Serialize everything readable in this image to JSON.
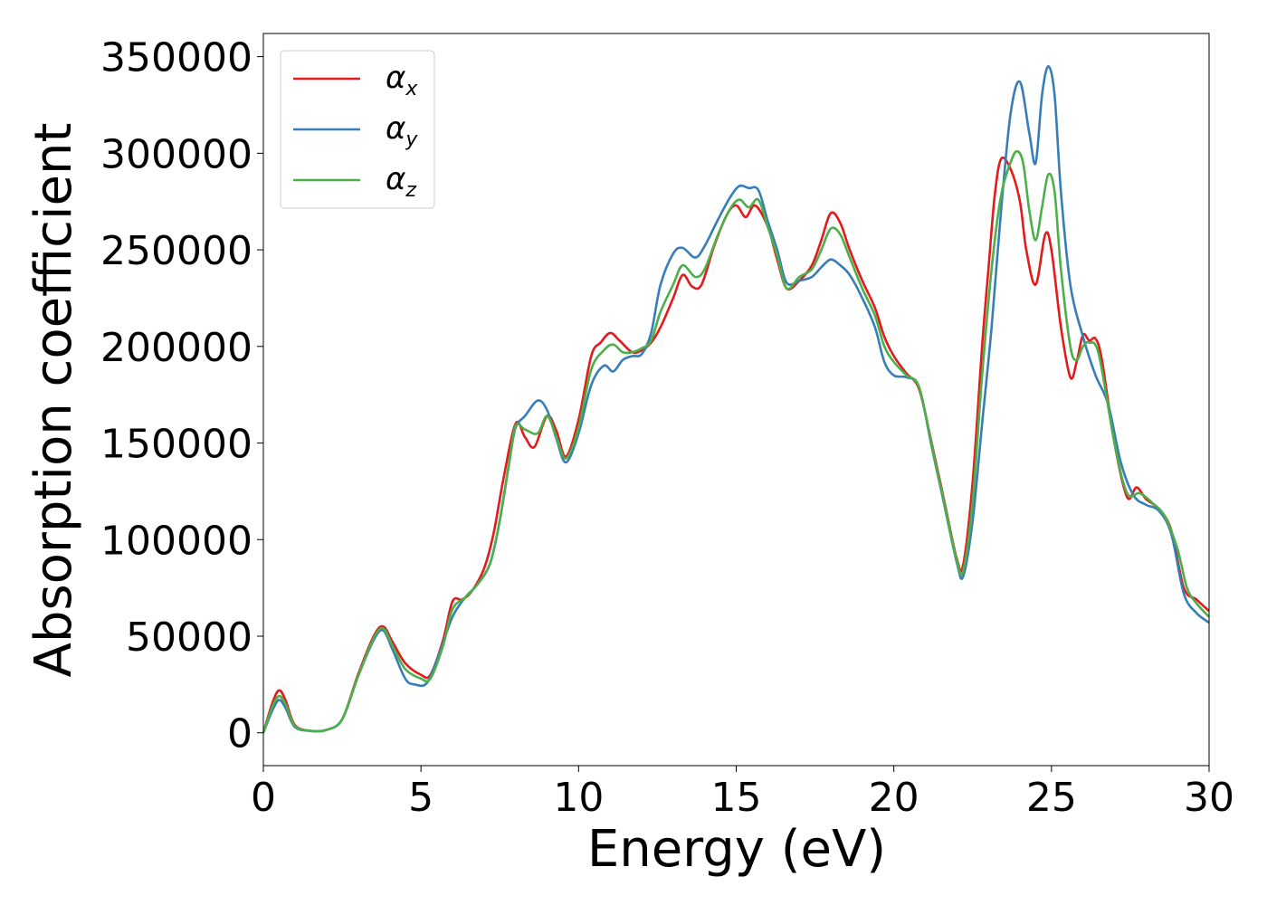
{
  "chart_data": {
    "type": "line",
    "title": "",
    "xlabel": "Energy (eV)",
    "ylabel": "Absorption coefficient",
    "xlim": [
      0,
      30
    ],
    "ylim": [
      -17000,
      362000
    ],
    "xticks": [
      "0",
      "5",
      "10",
      "15",
      "20",
      "25",
      "30"
    ],
    "yticks": [
      "0",
      "50000",
      "100000",
      "150000",
      "200000",
      "250000",
      "300000",
      "350000"
    ],
    "grid": false,
    "legend_position": "top-left",
    "series": [
      {
        "name": "α",
        "subscript": "x",
        "color": "#e41a1c",
        "points": [
          [
            0,
            0
          ],
          [
            0.3,
            16000
          ],
          [
            0.5,
            22000
          ],
          [
            0.7,
            17000
          ],
          [
            1.0,
            4000
          ],
          [
            1.5,
            1000
          ],
          [
            2.0,
            1500
          ],
          [
            2.5,
            7000
          ],
          [
            3.0,
            30000
          ],
          [
            3.5,
            50000
          ],
          [
            3.8,
            55000
          ],
          [
            4.1,
            47000
          ],
          [
            4.5,
            36000
          ],
          [
            5.0,
            30000
          ],
          [
            5.3,
            30000
          ],
          [
            5.7,
            48000
          ],
          [
            6.0,
            68000
          ],
          [
            6.3,
            69000
          ],
          [
            6.6,
            73000
          ],
          [
            7.0,
            85000
          ],
          [
            7.3,
            103000
          ],
          [
            7.6,
            130000
          ],
          [
            8.0,
            160000
          ],
          [
            8.3,
            153000
          ],
          [
            8.6,
            148000
          ],
          [
            9.0,
            164000
          ],
          [
            9.3,
            156000
          ],
          [
            9.6,
            143000
          ],
          [
            10.0,
            162000
          ],
          [
            10.4,
            195000
          ],
          [
            10.7,
            202000
          ],
          [
            11.0,
            207000
          ],
          [
            11.3,
            203000
          ],
          [
            11.7,
            197000
          ],
          [
            12.0,
            198000
          ],
          [
            12.3,
            202000
          ],
          [
            12.6,
            210000
          ],
          [
            13.0,
            225000
          ],
          [
            13.3,
            237000
          ],
          [
            13.6,
            231000
          ],
          [
            13.9,
            232000
          ],
          [
            14.3,
            252000
          ],
          [
            14.7,
            268000
          ],
          [
            15.0,
            273000
          ],
          [
            15.3,
            267000
          ],
          [
            15.6,
            273000
          ],
          [
            16.0,
            262000
          ],
          [
            16.3,
            245000
          ],
          [
            16.6,
            230000
          ],
          [
            17.0,
            234000
          ],
          [
            17.4,
            242000
          ],
          [
            17.7,
            255000
          ],
          [
            18.0,
            269000
          ],
          [
            18.3,
            264000
          ],
          [
            18.6,
            250000
          ],
          [
            19.0,
            234000
          ],
          [
            19.4,
            220000
          ],
          [
            19.7,
            205000
          ],
          [
            20.0,
            195000
          ],
          [
            20.4,
            186000
          ],
          [
            20.8,
            178000
          ],
          [
            21.2,
            150000
          ],
          [
            21.6,
            120000
          ],
          [
            22.0,
            90000
          ],
          [
            22.2,
            87000
          ],
          [
            22.5,
            130000
          ],
          [
            22.8,
            200000
          ],
          [
            23.0,
            240000
          ],
          [
            23.2,
            278000
          ],
          [
            23.4,
            297000
          ],
          [
            23.7,
            292000
          ],
          [
            24.0,
            275000
          ],
          [
            24.2,
            250000
          ],
          [
            24.5,
            232000
          ],
          [
            24.8,
            258000
          ],
          [
            25.0,
            250000
          ],
          [
            25.3,
            210000
          ],
          [
            25.6,
            184000
          ],
          [
            25.8,
            192000
          ],
          [
            26.0,
            206000
          ],
          [
            26.2,
            203000
          ],
          [
            26.4,
            204000
          ],
          [
            26.6,
            193000
          ],
          [
            27.0,
            150000
          ],
          [
            27.4,
            122000
          ],
          [
            27.7,
            127000
          ],
          [
            28.0,
            121000
          ],
          [
            28.4,
            116000
          ],
          [
            28.8,
            105000
          ],
          [
            29.2,
            75000
          ],
          [
            29.6,
            69000
          ],
          [
            30.0,
            63000
          ]
        ]
      },
      {
        "name": "α",
        "subscript": "y",
        "color": "#377eb8",
        "points": [
          [
            0,
            0
          ],
          [
            0.3,
            12000
          ],
          [
            0.5,
            17000
          ],
          [
            0.7,
            13000
          ],
          [
            1.0,
            3000
          ],
          [
            1.5,
            1000
          ],
          [
            2.0,
            1500
          ],
          [
            2.5,
            7000
          ],
          [
            3.0,
            29000
          ],
          [
            3.5,
            48000
          ],
          [
            3.8,
            53000
          ],
          [
            4.1,
            43000
          ],
          [
            4.5,
            28000
          ],
          [
            4.8,
            25000
          ],
          [
            5.2,
            26000
          ],
          [
            5.6,
            42000
          ],
          [
            6.0,
            60000
          ],
          [
            6.4,
            70000
          ],
          [
            6.8,
            77000
          ],
          [
            7.2,
            88000
          ],
          [
            7.5,
            110000
          ],
          [
            7.8,
            140000
          ],
          [
            8.0,
            158000
          ],
          [
            8.3,
            164000
          ],
          [
            8.7,
            172000
          ],
          [
            9.0,
            167000
          ],
          [
            9.3,
            152000
          ],
          [
            9.6,
            140000
          ],
          [
            10.0,
            155000
          ],
          [
            10.4,
            180000
          ],
          [
            10.8,
            190000
          ],
          [
            11.1,
            187000
          ],
          [
            11.4,
            193000
          ],
          [
            11.7,
            195000
          ],
          [
            12.0,
            196000
          ],
          [
            12.3,
            207000
          ],
          [
            12.6,
            232000
          ],
          [
            13.0,
            248000
          ],
          [
            13.3,
            251000
          ],
          [
            13.7,
            246000
          ],
          [
            14.0,
            252000
          ],
          [
            14.4,
            265000
          ],
          [
            14.8,
            277000
          ],
          [
            15.1,
            283000
          ],
          [
            15.4,
            282000
          ],
          [
            15.7,
            281000
          ],
          [
            16.0,
            265000
          ],
          [
            16.3,
            250000
          ],
          [
            16.6,
            233000
          ],
          [
            17.0,
            234000
          ],
          [
            17.4,
            236000
          ],
          [
            17.7,
            241000
          ],
          [
            18.0,
            245000
          ],
          [
            18.3,
            242000
          ],
          [
            18.6,
            237000
          ],
          [
            19.0,
            225000
          ],
          [
            19.4,
            210000
          ],
          [
            19.7,
            192000
          ],
          [
            20.0,
            185000
          ],
          [
            20.4,
            184000
          ],
          [
            20.8,
            179000
          ],
          [
            21.2,
            148000
          ],
          [
            21.6,
            118000
          ],
          [
            22.0,
            88000
          ],
          [
            22.2,
            81000
          ],
          [
            22.5,
            110000
          ],
          [
            22.8,
            160000
          ],
          [
            23.1,
            210000
          ],
          [
            23.4,
            270000
          ],
          [
            23.7,
            320000
          ],
          [
            24.0,
            337000
          ],
          [
            24.3,
            310000
          ],
          [
            24.5,
            295000
          ],
          [
            24.7,
            330000
          ],
          [
            24.9,
            345000
          ],
          [
            25.1,
            330000
          ],
          [
            25.3,
            280000
          ],
          [
            25.6,
            232000
          ],
          [
            26.0,
            205000
          ],
          [
            26.4,
            185000
          ],
          [
            26.8,
            170000
          ],
          [
            27.2,
            140000
          ],
          [
            27.6,
            123000
          ],
          [
            28.0,
            118000
          ],
          [
            28.4,
            115000
          ],
          [
            28.8,
            103000
          ],
          [
            29.2,
            72000
          ],
          [
            29.6,
            62000
          ],
          [
            30.0,
            57000
          ]
        ]
      },
      {
        "name": "α",
        "subscript": "z",
        "color": "#4daf4a",
        "points": [
          [
            0,
            0
          ],
          [
            0.3,
            14000
          ],
          [
            0.5,
            19000
          ],
          [
            0.7,
            15000
          ],
          [
            1.0,
            3500
          ],
          [
            1.5,
            1000
          ],
          [
            2.0,
            1500
          ],
          [
            2.5,
            7000
          ],
          [
            3.0,
            29000
          ],
          [
            3.5,
            49000
          ],
          [
            3.8,
            54000
          ],
          [
            4.1,
            45000
          ],
          [
            4.5,
            33000
          ],
          [
            5.0,
            28000
          ],
          [
            5.3,
            28000
          ],
          [
            5.7,
            45000
          ],
          [
            6.0,
            64000
          ],
          [
            6.4,
            70000
          ],
          [
            6.8,
            77000
          ],
          [
            7.2,
            88000
          ],
          [
            7.5,
            110000
          ],
          [
            7.8,
            140000
          ],
          [
            8.0,
            159000
          ],
          [
            8.3,
            157000
          ],
          [
            8.7,
            155000
          ],
          [
            9.0,
            164000
          ],
          [
            9.3,
            153000
          ],
          [
            9.6,
            142000
          ],
          [
            10.0,
            158000
          ],
          [
            10.4,
            188000
          ],
          [
            10.8,
            198000
          ],
          [
            11.1,
            201000
          ],
          [
            11.4,
            197000
          ],
          [
            11.7,
            197000
          ],
          [
            12.0,
            199000
          ],
          [
            12.3,
            203000
          ],
          [
            12.6,
            218000
          ],
          [
            13.0,
            232000
          ],
          [
            13.3,
            242000
          ],
          [
            13.7,
            236000
          ],
          [
            14.0,
            240000
          ],
          [
            14.4,
            257000
          ],
          [
            14.8,
            271000
          ],
          [
            15.1,
            276000
          ],
          [
            15.4,
            272000
          ],
          [
            15.7,
            276000
          ],
          [
            16.0,
            262000
          ],
          [
            16.3,
            247000
          ],
          [
            16.6,
            230000
          ],
          [
            17.0,
            236000
          ],
          [
            17.4,
            240000
          ],
          [
            17.7,
            250000
          ],
          [
            18.0,
            261000
          ],
          [
            18.3,
            258000
          ],
          [
            18.6,
            246000
          ],
          [
            19.0,
            230000
          ],
          [
            19.4,
            216000
          ],
          [
            19.7,
            200000
          ],
          [
            20.0,
            192000
          ],
          [
            20.4,
            185000
          ],
          [
            20.8,
            179000
          ],
          [
            21.2,
            149000
          ],
          [
            21.6,
            119000
          ],
          [
            22.0,
            89000
          ],
          [
            22.2,
            84000
          ],
          [
            22.5,
            120000
          ],
          [
            22.8,
            185000
          ],
          [
            23.1,
            240000
          ],
          [
            23.4,
            278000
          ],
          [
            23.7,
            295000
          ],
          [
            23.9,
            301000
          ],
          [
            24.1,
            295000
          ],
          [
            24.3,
            270000
          ],
          [
            24.5,
            255000
          ],
          [
            24.7,
            272000
          ],
          [
            24.9,
            289000
          ],
          [
            25.1,
            280000
          ],
          [
            25.3,
            240000
          ],
          [
            25.6,
            200000
          ],
          [
            25.8,
            193000
          ],
          [
            26.0,
            200000
          ],
          [
            26.2,
            202000
          ],
          [
            26.5,
            196000
          ],
          [
            27.0,
            150000
          ],
          [
            27.4,
            124000
          ],
          [
            27.8,
            124000
          ],
          [
            28.2,
            119000
          ],
          [
            28.6,
            112000
          ],
          [
            29.0,
            95000
          ],
          [
            29.3,
            75000
          ],
          [
            29.6,
            67000
          ],
          [
            30.0,
            60000
          ]
        ]
      }
    ]
  }
}
